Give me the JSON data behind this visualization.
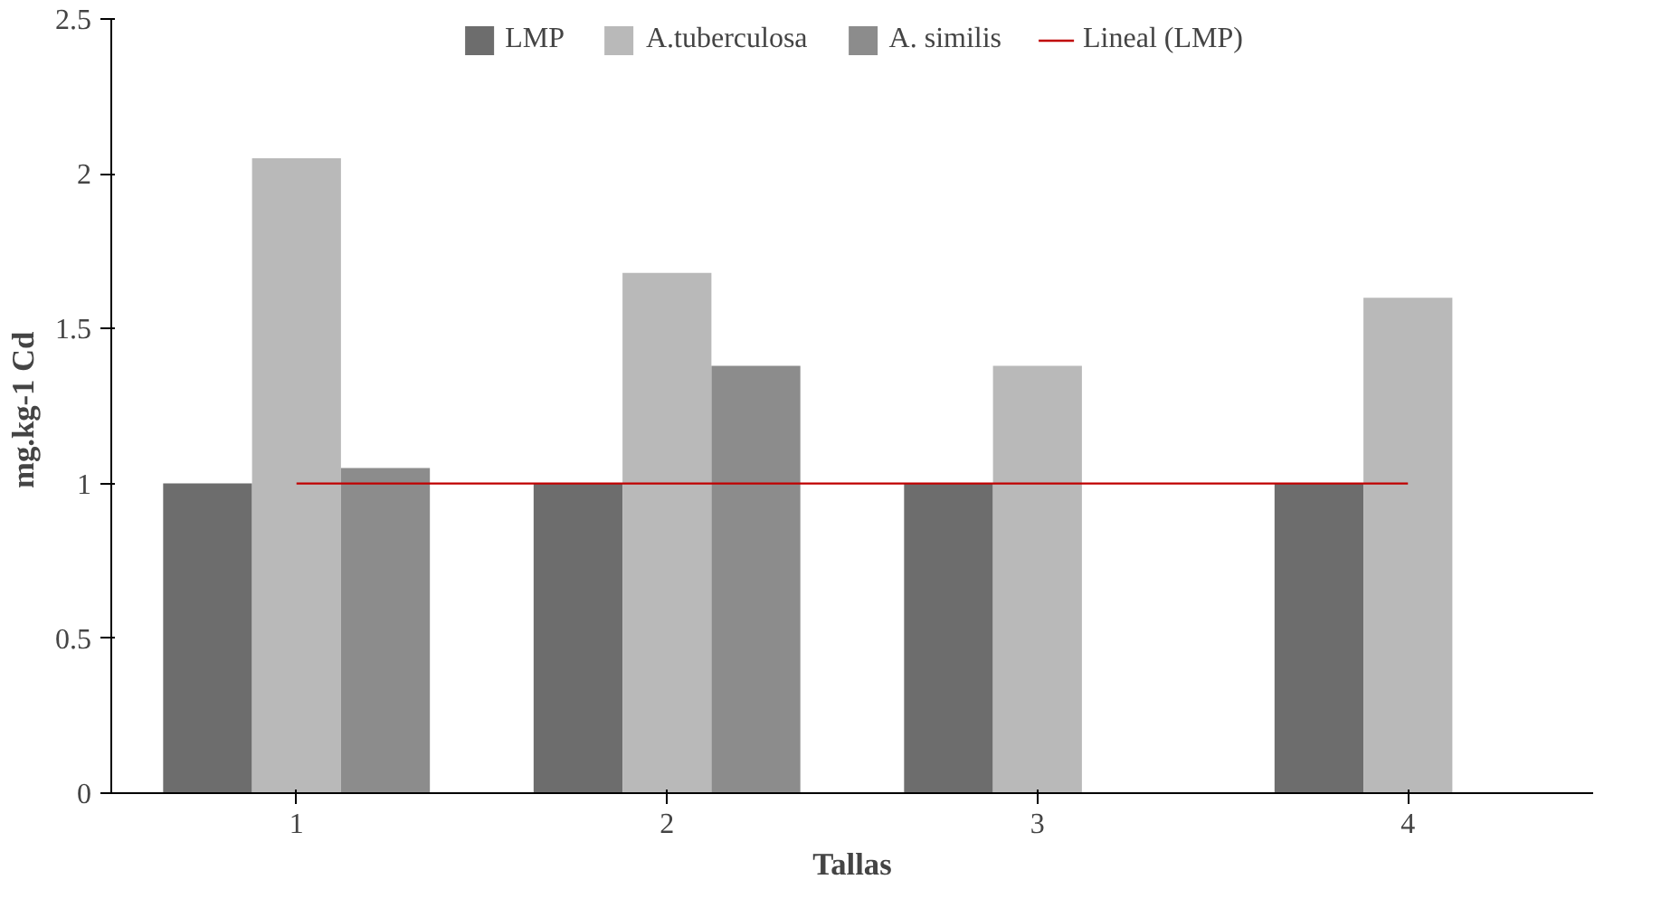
{
  "chart_data": {
    "type": "bar",
    "xlabel": "Tallas",
    "ylabel": "mg.kg-1  Cd",
    "categories": [
      "1",
      "2",
      "3",
      "4"
    ],
    "series": [
      {
        "name": "LMP",
        "color": "#6d6d6d",
        "values": [
          1,
          1,
          1,
          1
        ]
      },
      {
        "name": "A.tuberculosa",
        "color": "#b9b9b9",
        "values": [
          2.05,
          1.68,
          1.38,
          1.6
        ]
      },
      {
        "name": "A. similis",
        "color": "#8c8c8c",
        "values": [
          1.05,
          1.38,
          null,
          null
        ]
      },
      {
        "name": "Lineal (LMP)",
        "type": "line",
        "color": "#c00000",
        "values": [
          1,
          1,
          1,
          1
        ]
      }
    ],
    "ylim": [
      0,
      2.5
    ],
    "yticks": [
      0,
      0.5,
      1,
      1.5,
      2,
      2.5
    ],
    "grid": false,
    "legend": "top"
  }
}
